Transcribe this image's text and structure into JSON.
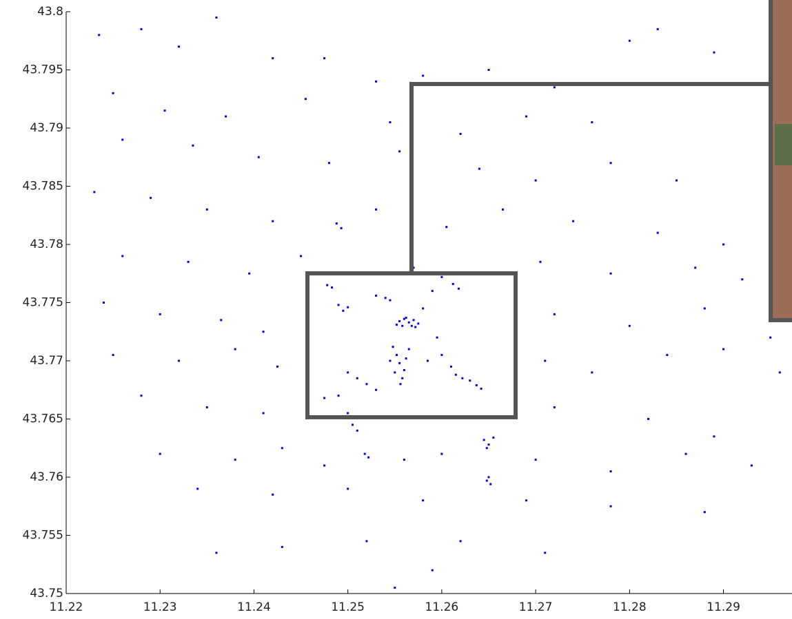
{
  "chart_data": {
    "type": "scatter",
    "color": "#0000ee",
    "xlim": [
      11.22,
      11.2973
    ],
    "ylim": [
      43.75,
      43.8
    ],
    "xticks": [
      11.22,
      11.23,
      11.24,
      11.25,
      11.26,
      11.27,
      11.28,
      11.29
    ],
    "yticks": [
      43.75,
      43.755,
      43.76,
      43.765,
      43.77,
      43.775,
      43.78,
      43.785,
      43.79,
      43.795,
      43.8
    ],
    "x": [
      11.2555,
      11.256,
      11.2565,
      11.257,
      11.2575,
      11.2558,
      11.2568,
      11.2562,
      11.2572,
      11.2552,
      11.2548,
      11.2552,
      11.2555,
      11.256,
      11.2558,
      11.2545,
      11.2562,
      11.255,
      11.2556,
      11.2565,
      11.2615,
      11.2622,
      11.263,
      11.2637,
      11.2642,
      11.2645,
      11.265,
      11.2655,
      11.2648,
      11.2648,
      11.2652,
      11.265,
      11.2518,
      11.2522,
      11.249,
      11.2495,
      11.25,
      11.2478,
      11.2483,
      11.2612,
      11.2618,
      11.253,
      11.254,
      11.2545,
      11.2488,
      11.2493,
      11.25,
      11.251,
      11.252,
      11.253,
      11.249,
      11.2475,
      11.25,
      11.2505,
      11.251,
      11.2585,
      11.26,
      11.261,
      11.2595,
      11.258,
      11.259,
      11.26,
      11.257,
      11.2235,
      11.228,
      11.232,
      11.236,
      11.242,
      11.2475,
      11.253,
      11.258,
      11.265,
      11.272,
      11.28,
      11.283,
      11.289,
      11.225,
      11.2305,
      11.237,
      11.2455,
      11.2545,
      11.262,
      11.269,
      11.276,
      11.226,
      11.2335,
      11.2405,
      11.248,
      11.2555,
      11.264,
      11.27,
      11.278,
      11.285,
      11.223,
      11.229,
      11.235,
      11.242,
      11.253,
      11.2605,
      11.2665,
      11.274,
      11.283,
      11.29,
      11.226,
      11.233,
      11.2395,
      11.245,
      11.2705,
      11.278,
      11.287,
      11.292,
      11.224,
      11.23,
      11.2365,
      11.241,
      11.272,
      11.28,
      11.288,
      11.295,
      11.225,
      11.232,
      11.238,
      11.2425,
      11.271,
      11.276,
      11.284,
      11.29,
      11.296,
      11.228,
      11.235,
      11.241,
      11.272,
      11.282,
      11.289,
      11.23,
      11.238,
      11.243,
      11.2475,
      11.256,
      11.26,
      11.27,
      11.278,
      11.286,
      11.293,
      11.234,
      11.242,
      11.25,
      11.258,
      11.269,
      11.278,
      11.288,
      11.236,
      11.243,
      11.252,
      11.259,
      11.262,
      11.271,
      11.255
    ],
    "values": [
      43.7734,
      43.7736,
      43.7733,
      43.7735,
      43.7732,
      43.773,
      43.773,
      43.7737,
      43.7729,
      43.7731,
      43.7712,
      43.7705,
      43.7698,
      43.7692,
      43.7685,
      43.77,
      43.7702,
      43.769,
      43.768,
      43.771,
      43.7688,
      43.7685,
      43.7683,
      43.7679,
      43.7676,
      43.7632,
      43.7628,
      43.7634,
      43.7625,
      43.7597,
      43.7594,
      43.76,
      43.762,
      43.7617,
      43.7748,
      43.7743,
      43.7746,
      43.7765,
      43.7763,
      43.7766,
      43.7762,
      43.7756,
      43.7754,
      43.7752,
      43.7818,
      43.7814,
      43.769,
      43.7685,
      43.768,
      43.7675,
      43.767,
      43.7668,
      43.7655,
      43.7645,
      43.764,
      43.77,
      43.7705,
      43.7695,
      43.772,
      43.7745,
      43.776,
      43.7772,
      43.778,
      43.798,
      43.7985,
      43.797,
      43.7995,
      43.796,
      43.796,
      43.794,
      43.7945,
      43.795,
      43.7935,
      43.7975,
      43.7985,
      43.7965,
      43.793,
      43.7915,
      43.791,
      43.7925,
      43.7905,
      43.7895,
      43.791,
      43.7905,
      43.789,
      43.7885,
      43.7875,
      43.787,
      43.788,
      43.7865,
      43.7855,
      43.787,
      43.7855,
      43.7845,
      43.784,
      43.783,
      43.782,
      43.783,
      43.7815,
      43.783,
      43.782,
      43.781,
      43.78,
      43.779,
      43.7785,
      43.7775,
      43.779,
      43.7785,
      43.7775,
      43.778,
      43.777,
      43.775,
      43.774,
      43.7735,
      43.7725,
      43.774,
      43.773,
      43.7745,
      43.772,
      43.7705,
      43.77,
      43.771,
      43.7695,
      43.77,
      43.769,
      43.7705,
      43.771,
      43.769,
      43.767,
      43.766,
      43.7655,
      43.766,
      43.765,
      43.7635,
      43.762,
      43.7615,
      43.7625,
      43.761,
      43.7615,
      43.762,
      43.7615,
      43.7605,
      43.762,
      43.761,
      43.759,
      43.7585,
      43.759,
      43.758,
      43.758,
      43.7575,
      43.757,
      43.7535,
      43.754,
      43.7545,
      43.752,
      43.7545,
      43.7535,
      43.7505
    ]
  }
}
